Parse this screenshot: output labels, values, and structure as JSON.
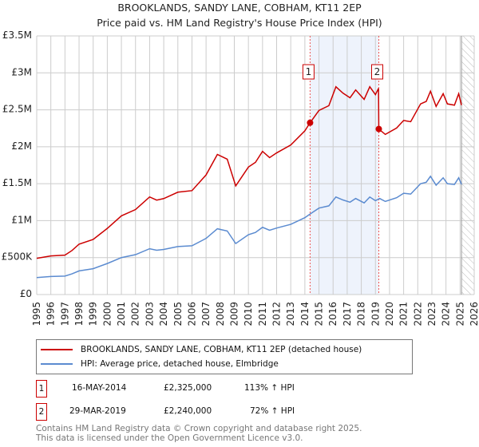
{
  "chart_data": {
    "type": "line",
    "title": "BROOKLANDS, SANDY LANE, COBHAM, KT11 2EP",
    "subtitle": "Price paid vs. HM Land Registry's House Price Index (HPI)",
    "xlim": [
      1995,
      2026
    ],
    "ylim": [
      0,
      3500000
    ],
    "x_ticks": [
      "1995",
      "1996",
      "1997",
      "1998",
      "1999",
      "2000",
      "2001",
      "2002",
      "2003",
      "2004",
      "2005",
      "2006",
      "2007",
      "2008",
      "2009",
      "2010",
      "2011",
      "2012",
      "2013",
      "2014",
      "2015",
      "2016",
      "2017",
      "2018",
      "2019",
      "2020",
      "2021",
      "2022",
      "2023",
      "2024",
      "2025",
      "2026"
    ],
    "y_ticks": [
      {
        "v": 0,
        "label": "£0"
      },
      {
        "v": 500000,
        "label": "£500K"
      },
      {
        "v": 1000000,
        "label": "£1M"
      },
      {
        "v": 1500000,
        "label": "£1.5M"
      },
      {
        "v": 2000000,
        "label": "£2M"
      },
      {
        "v": 2500000,
        "label": "£2.5M"
      },
      {
        "v": 3000000,
        "label": "£3M"
      },
      {
        "v": 3500000,
        "label": "£3.5M"
      }
    ],
    "grid": true,
    "shaded_range": [
      2014.37,
      2019.24
    ],
    "forecast_from": 2025.1,
    "series": [
      {
        "name": "BROOKLANDS, SANDY LANE, COBHAM, KT11 2EP (detached house)",
        "color": "#cc0000",
        "x": [
          1995,
          1996,
          1997,
          1997.5,
          1998,
          1999,
          2000,
          2001,
          2002,
          2003,
          2003.5,
          2004,
          2005,
          2006,
          2007,
          2007.8,
          2008.5,
          2009.1,
          2010,
          2010.5,
          2011,
          2011.5,
          2012,
          2013,
          2014,
          2014.37,
          2015,
          2015.7,
          2016.2,
          2016.7,
          2017.2,
          2017.6,
          2018.2,
          2018.6,
          2019,
          2019.22,
          2019.24,
          2019.7,
          2020.5,
          2021,
          2021.5,
          2022.2,
          2022.6,
          2022.9,
          2023.3,
          2023.8,
          2024.1,
          2024.6,
          2024.9,
          2025.1
        ],
        "y": [
          490,
          522,
          533,
          596,
          682,
          746,
          895,
          1065,
          1150,
          1321,
          1278,
          1299,
          1385,
          1406,
          1619,
          1896,
          1832,
          1470,
          1725,
          1789,
          1938,
          1853,
          1917,
          2024,
          2215,
          2325,
          2492,
          2556,
          2812,
          2726,
          2663,
          2769,
          2641,
          2812,
          2705,
          2790,
          2240,
          2167,
          2253,
          2356,
          2339,
          2580,
          2614,
          2752,
          2546,
          2718,
          2580,
          2563,
          2718,
          2563
        ]
      },
      {
        "name": "HPI: Average price, detached house, Elmbridge",
        "color": "#5b8bd0",
        "x": [
          1995,
          1996,
          1997,
          1997.5,
          1998,
          1999,
          2000,
          2001,
          2002,
          2003,
          2003.5,
          2004,
          2005,
          2006,
          2007,
          2007.8,
          2008.5,
          2009.1,
          2010,
          2010.5,
          2011,
          2011.5,
          2012,
          2013,
          2014,
          2014.37,
          2015,
          2015.7,
          2016.2,
          2016.7,
          2017.2,
          2017.6,
          2018.2,
          2018.6,
          2019,
          2019.3,
          2019.7,
          2020.5,
          2021,
          2021.5,
          2022.2,
          2022.6,
          2022.9,
          2023.3,
          2023.8,
          2024.1,
          2024.6,
          2024.9,
          2025.1
        ],
        "y": [
          230,
          245,
          250,
          280,
          320,
          350,
          420,
          500,
          540,
          620,
          600,
          610,
          650,
          660,
          760,
          890,
          860,
          690,
          810,
          840,
          910,
          870,
          900,
          950,
          1040,
          1090,
          1170,
          1200,
          1320,
          1280,
          1250,
          1300,
          1240,
          1320,
          1270,
          1300,
          1260,
          1310,
          1370,
          1360,
          1500,
          1520,
          1600,
          1480,
          1580,
          1500,
          1490,
          1580,
          1490
        ]
      }
    ],
    "y_unit": "thousands GBP",
    "annotations": [
      {
        "label": "1",
        "x": 2014.37,
        "y": 2325
      },
      {
        "label": "2",
        "x": 2019.24,
        "y": 2240
      }
    ]
  },
  "legend": {
    "red": "BROOKLANDS, SANDY LANE, COBHAM, KT11 2EP (detached house)",
    "blue": "HPI: Average price, detached house, Elmbridge"
  },
  "sales": [
    {
      "num": "1",
      "date": "16-MAY-2014",
      "price": "£2,325,000",
      "hpi": "113% ↑ HPI"
    },
    {
      "num": "2",
      "date": "29-MAR-2019",
      "price": "£2,240,000",
      "hpi": "72% ↑ HPI"
    }
  ],
  "footer": {
    "line1": "Contains HM Land Registry data © Crown copyright and database right 2025.",
    "line2": "This data is licensed under the Open Government Licence v3.0."
  }
}
